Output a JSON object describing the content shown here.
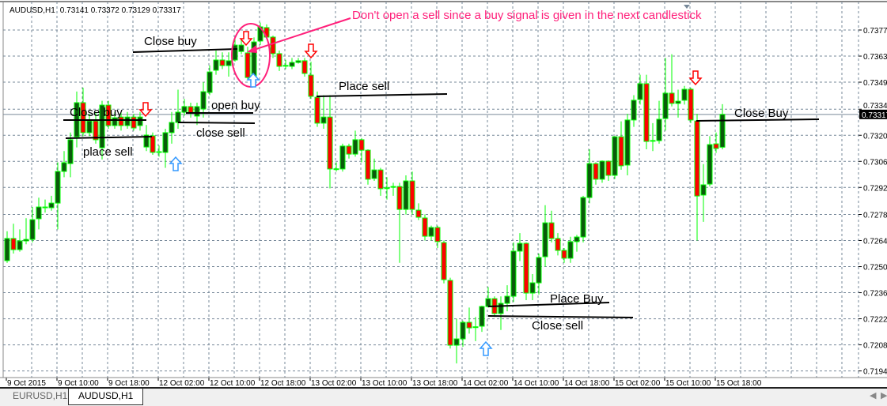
{
  "header": {
    "symbol": "AUDUSD,H1",
    "ohlc": "0.73141 0.73372 0.73129 0.73317"
  },
  "colors": {
    "bull_fill": "#0b5a0b",
    "bear_fill": "#ff0000",
    "outline": "#00ff00",
    "grid": "#778899",
    "annotation_pink": "#ff1f7a",
    "sell_arrow": "#ff0000",
    "buy_arrow": "#3399ff"
  },
  "tabs": [
    {
      "label": "EURUSD,H1",
      "active": false
    },
    {
      "label": "AUDUSD,H1",
      "active": true
    }
  ],
  "annotations": {
    "note": "Don't open a sell since a buy signal is given in the next candlestick",
    "labels": [
      "Close buy",
      "Close buy",
      "place sell",
      "open buy",
      "close sell",
      "Place sell",
      "Place Buy",
      "Close sell",
      "Close Buy"
    ],
    "sell_arrows": 4,
    "buy_arrows": 3
  },
  "chart_data": {
    "type": "candlestick",
    "title": "AUDUSD,H1",
    "ylim": [
      0.719,
      0.7392
    ],
    "grid": true,
    "current_price": "0.73317",
    "y_ticks": [
      "0.73770",
      "0.73630",
      "0.73490",
      "0.73345",
      "0.73205",
      "0.73065",
      "0.72925",
      "0.72780",
      "0.72640",
      "0.72500",
      "0.72360",
      "0.72220",
      "0.72080",
      "0.71940"
    ],
    "x_ticks": [
      "9 Oct 2015",
      "9 Oct 10:00",
      "9 Oct 18:00",
      "12 Oct 02:00",
      "12 Oct 10:00",
      "12 Oct 18:00",
      "13 Oct 02:00",
      "13 Oct 10:00",
      "13 Oct 18:00",
      "14 Oct 02:00",
      "14 Oct 10:00",
      "14 Oct 18:00",
      "15 Oct 02:00",
      "15 Oct 10:00",
      "15 Oct 18:00"
    ],
    "ohlc": [
      [
        0.72532,
        0.7269,
        0.7252,
        0.72651
      ],
      [
        0.72651,
        0.7273,
        0.7257,
        0.72591
      ],
      [
        0.72591,
        0.727,
        0.7258,
        0.72638
      ],
      [
        0.72638,
        0.7276,
        0.7262,
        0.72646
      ],
      [
        0.72646,
        0.7282,
        0.7263,
        0.72752
      ],
      [
        0.72757,
        0.7287,
        0.727,
        0.7282
      ],
      [
        0.7282,
        0.7286,
        0.7279,
        0.72816
      ],
      [
        0.72816,
        0.7288,
        0.728,
        0.72841
      ],
      [
        0.72841,
        0.7306,
        0.727,
        0.73011
      ],
      [
        0.73011,
        0.7312,
        0.7298,
        0.73058
      ],
      [
        0.73053,
        0.7322,
        0.7298,
        0.73181
      ],
      [
        0.73197,
        0.7344,
        0.7314,
        0.7338
      ],
      [
        0.7338,
        0.7346,
        0.732,
        0.73219
      ],
      [
        0.73219,
        0.7332,
        0.732,
        0.73282
      ],
      [
        0.73282,
        0.7333,
        0.7316,
        0.73181
      ],
      [
        0.73138,
        0.7339,
        0.73075,
        0.73367
      ],
      [
        0.73367,
        0.7339,
        0.7324,
        0.73257
      ],
      [
        0.73257,
        0.7333,
        0.7324,
        0.73299
      ],
      [
        0.73303,
        0.7333,
        0.7323,
        0.73257
      ],
      [
        0.73257,
        0.7333,
        0.7324,
        0.73303
      ],
      [
        0.73303,
        0.7332,
        0.7323,
        0.73244
      ],
      [
        0.73257,
        0.7333,
        0.7323,
        0.73303
      ],
      [
        0.73142,
        0.7326,
        0.7312,
        0.73206
      ],
      [
        0.73202,
        0.7322,
        0.731,
        0.73113
      ],
      [
        0.73117,
        0.7315,
        0.7309,
        0.73113
      ],
      [
        0.73113,
        0.7324,
        0.7303,
        0.73219
      ],
      [
        0.73219,
        0.7333,
        0.7316,
        0.73274
      ],
      [
        0.73274,
        0.7345,
        0.7324,
        0.73329
      ],
      [
        0.73329,
        0.734,
        0.7331,
        0.73359
      ],
      [
        0.73359,
        0.7338,
        0.733,
        0.73325
      ],
      [
        0.73308,
        0.7338,
        0.7326,
        0.73359
      ],
      [
        0.73346,
        0.7349,
        0.733,
        0.73439
      ],
      [
        0.73435,
        0.7358,
        0.7342,
        0.73545
      ],
      [
        0.73554,
        0.7366,
        0.7353,
        0.73609
      ],
      [
        0.73609,
        0.7365,
        0.7356,
        0.73579
      ],
      [
        0.73579,
        0.7365,
        0.7352,
        0.73605
      ],
      [
        0.73609,
        0.7372,
        0.736,
        0.73689
      ],
      [
        0.73655,
        0.7372,
        0.7364,
        0.73689
      ],
      [
        0.73647,
        0.7368,
        0.735,
        0.73515
      ],
      [
        0.73515,
        0.7373,
        0.7348,
        0.73706
      ],
      [
        0.73711,
        0.7381,
        0.7369,
        0.73787
      ],
      [
        0.73783,
        0.738,
        0.7372,
        0.73732
      ],
      [
        0.73732,
        0.7374,
        0.7362,
        0.73643
      ],
      [
        0.73643,
        0.7366,
        0.7355,
        0.73575
      ],
      [
        0.7358,
        0.7361,
        0.7356,
        0.73579
      ],
      [
        0.73575,
        0.7362,
        0.7356,
        0.73596
      ],
      [
        0.73596,
        0.7362,
        0.7359,
        0.73605
      ],
      [
        0.73605,
        0.7362,
        0.7352,
        0.73537
      ],
      [
        0.73528,
        0.736,
        0.734,
        0.73414
      ],
      [
        0.73409,
        0.7344,
        0.7325,
        0.7327
      ],
      [
        0.7327,
        0.7342,
        0.7324,
        0.73303
      ],
      [
        0.73303,
        0.7342,
        0.7292,
        0.73024
      ],
      [
        0.73024,
        0.7306,
        0.7301,
        0.73025
      ],
      [
        0.73024,
        0.7316,
        0.7301,
        0.73147
      ],
      [
        0.73147,
        0.7316,
        0.7308,
        0.73104
      ],
      [
        0.73104,
        0.7323,
        0.7309,
        0.73181
      ],
      [
        0.73181,
        0.7319,
        0.7306,
        0.73125
      ],
      [
        0.73125,
        0.7313,
        0.7294,
        0.72969
      ],
      [
        0.72973,
        0.7308,
        0.7296,
        0.73019
      ],
      [
        0.73019,
        0.7303,
        0.7288,
        0.72918
      ],
      [
        0.72922,
        0.7298,
        0.7286,
        0.72923
      ],
      [
        0.7293,
        0.7295,
        0.7288,
        0.72928
      ],
      [
        0.7293,
        0.7295,
        0.7252,
        0.72807
      ],
      [
        0.72807,
        0.7299,
        0.7278,
        0.7296
      ],
      [
        0.7296,
        0.7301,
        0.7278,
        0.72807
      ],
      [
        0.72803,
        0.7284,
        0.7275,
        0.72765
      ],
      [
        0.72761,
        0.7278,
        0.7264,
        0.72663
      ],
      [
        0.72663,
        0.7272,
        0.7264,
        0.7271
      ],
      [
        0.7271,
        0.7272,
        0.726,
        0.72634
      ],
      [
        0.72629,
        0.7264,
        0.7241,
        0.7243
      ],
      [
        0.72426,
        0.7244,
        0.7206,
        0.72078
      ],
      [
        0.72078,
        0.7222,
        0.7198,
        0.72112
      ],
      [
        0.72112,
        0.7221,
        0.7207,
        0.72201
      ],
      [
        0.72201,
        0.7228,
        0.7214,
        0.72171
      ],
      [
        0.72176,
        0.7223,
        0.721,
        0.72177
      ],
      [
        0.7218,
        0.7229,
        0.7215,
        0.72286
      ],
      [
        0.72286,
        0.7239,
        0.7228,
        0.72328
      ],
      [
        0.72328,
        0.7234,
        0.7223,
        0.72248
      ],
      [
        0.72248,
        0.7234,
        0.7216,
        0.72303
      ],
      [
        0.72303,
        0.724,
        0.7226,
        0.72341
      ],
      [
        0.72341,
        0.7263,
        0.7231,
        0.72583
      ],
      [
        0.72583,
        0.7268,
        0.7253,
        0.72625
      ],
      [
        0.72625,
        0.7263,
        0.7232,
        0.72358
      ],
      [
        0.72358,
        0.7246,
        0.7232,
        0.72413
      ],
      [
        0.72413,
        0.7257,
        0.7235,
        0.72549
      ],
      [
        0.72553,
        0.7283,
        0.725,
        0.72735
      ],
      [
        0.72735,
        0.728,
        0.7263,
        0.72651
      ],
      [
        0.72651,
        0.7268,
        0.7256,
        0.72587
      ],
      [
        0.72587,
        0.726,
        0.7252,
        0.72545
      ],
      [
        0.72545,
        0.7266,
        0.7252,
        0.72634
      ],
      [
        0.72634,
        0.7267,
        0.7258,
        0.72659
      ],
      [
        0.72659,
        0.7288,
        0.7263,
        0.72871
      ],
      [
        0.72871,
        0.7313,
        0.7284,
        0.73053
      ],
      [
        0.73053,
        0.7306,
        0.7294,
        0.72969
      ],
      [
        0.72969,
        0.7307,
        0.7295,
        0.73066
      ],
      [
        0.73066,
        0.7307,
        0.7296,
        0.7299
      ],
      [
        0.7299,
        0.732,
        0.7297,
        0.73197
      ],
      [
        0.73197,
        0.7328,
        0.7302,
        0.73041
      ],
      [
        0.73045,
        0.7332,
        0.7299,
        0.73287
      ],
      [
        0.73287,
        0.7342,
        0.7325,
        0.73393
      ],
      [
        0.73397,
        0.7353,
        0.7337,
        0.73482
      ],
      [
        0.73482,
        0.7353,
        0.7313,
        0.73172
      ],
      [
        0.73176,
        0.7327,
        0.7312,
        0.73177
      ],
      [
        0.73176,
        0.7339,
        0.7316,
        0.73291
      ],
      [
        0.73295,
        0.7362,
        0.7323,
        0.73431
      ],
      [
        0.73431,
        0.7364,
        0.7336,
        0.73376
      ],
      [
        0.73376,
        0.7345,
        0.733,
        0.73388
      ],
      [
        0.73393,
        0.7347,
        0.7337,
        0.73452
      ],
      [
        0.73452,
        0.7346,
        0.7327,
        0.73287
      ],
      [
        0.73282,
        0.7332,
        0.7264,
        0.72879
      ],
      [
        0.72884,
        0.7305,
        0.7274,
        0.72939
      ],
      [
        0.72943,
        0.732,
        0.7293,
        0.73155
      ],
      [
        0.73159,
        0.7322,
        0.7311,
        0.73134
      ],
      [
        0.73141,
        0.73372,
        0.73129,
        0.73317
      ]
    ]
  }
}
